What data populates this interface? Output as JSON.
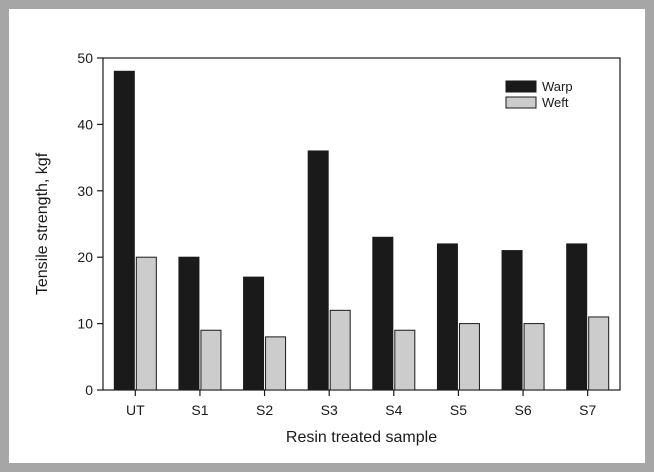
{
  "chart_data": {
    "type": "bar",
    "categories": [
      "UT",
      "S1",
      "S2",
      "S3",
      "S4",
      "S5",
      "S6",
      "S7"
    ],
    "series": [
      {
        "name": "Warp",
        "values": [
          48,
          20,
          17,
          36,
          23,
          22,
          21,
          22
        ],
        "color": "#1a1a1a"
      },
      {
        "name": "Weft",
        "values": [
          20,
          9,
          8,
          12,
          9,
          10,
          10,
          11
        ],
        "color": "#cccccc"
      }
    ],
    "xlabel": "Resin treated sample",
    "ylabel": "Tensile strength, kgf",
    "ylim": [
      0,
      50
    ],
    "yticks": [
      "0",
      "10",
      "20",
      "30",
      "40",
      "50"
    ],
    "grid": false,
    "legend": "top-right"
  }
}
